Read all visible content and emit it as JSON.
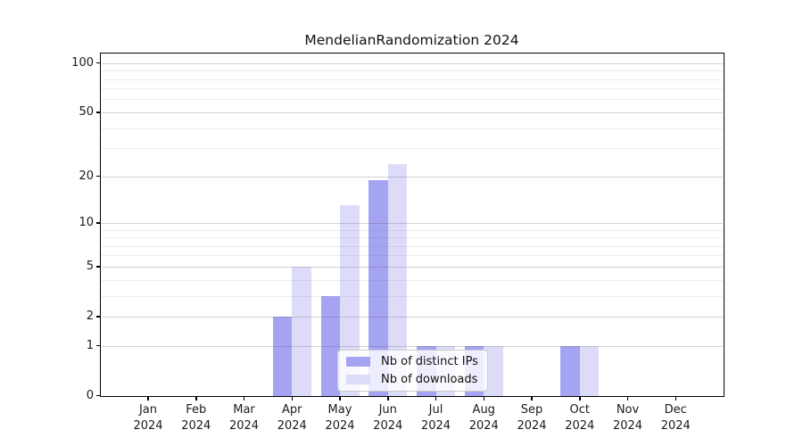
{
  "title": "MendelianRandomization 2024",
  "colors": {
    "ips_bar": "#a4a4f2",
    "downloads_bar": "#dcdcf8",
    "grid_major": "rgba(80,80,80,0.25)",
    "grid_minor": "rgba(80,80,80,0.10)",
    "axis": "#000000",
    "text": "#1a1a1a",
    "legend_bg": "rgba(255,255,255,0.8)",
    "legend_border": "#cccccc"
  },
  "legend": {
    "items": [
      {
        "label": "Nb of distinct IPs",
        "color_key": "ips_bar"
      },
      {
        "label": "Nb of downloads",
        "color_key": "downloads_bar"
      }
    ],
    "position": "lower center"
  },
  "x_axis": {
    "months": [
      "Jan",
      "Feb",
      "Mar",
      "Apr",
      "May",
      "Jun",
      "Jul",
      "Aug",
      "Sep",
      "Oct",
      "Nov",
      "Dec"
    ],
    "year": "2024"
  },
  "y_axis": {
    "scale": "log1p",
    "major_ticks": [
      0,
      1,
      2,
      5,
      10,
      20,
      50,
      100
    ],
    "minor_gridlines": [
      3,
      4,
      6,
      7,
      8,
      9,
      30,
      40,
      60,
      70,
      80,
      90
    ]
  },
  "chart_data": {
    "type": "bar",
    "title": "MendelianRandomization 2024",
    "categories": [
      "Jan 2024",
      "Feb 2024",
      "Mar 2024",
      "Apr 2024",
      "May 2024",
      "Jun 2024",
      "Jul 2024",
      "Aug 2024",
      "Sep 2024",
      "Oct 2024",
      "Nov 2024",
      "Dec 2024"
    ],
    "series": [
      {
        "name": "Nb of distinct IPs",
        "values": [
          0,
          0,
          0,
          2,
          3,
          19,
          1,
          1,
          0,
          1,
          0,
          0
        ]
      },
      {
        "name": "Nb of downloads",
        "values": [
          0,
          0,
          0,
          5,
          13,
          24,
          1,
          1,
          0,
          1,
          0,
          0
        ]
      }
    ],
    "xlabel": "",
    "ylabel": "",
    "y_scale": "log1p",
    "y_ticks": [
      0,
      1,
      2,
      5,
      10,
      20,
      50,
      100
    ],
    "ylim": [
      0,
      114
    ],
    "grid": true,
    "legend_position": "lower center"
  }
}
